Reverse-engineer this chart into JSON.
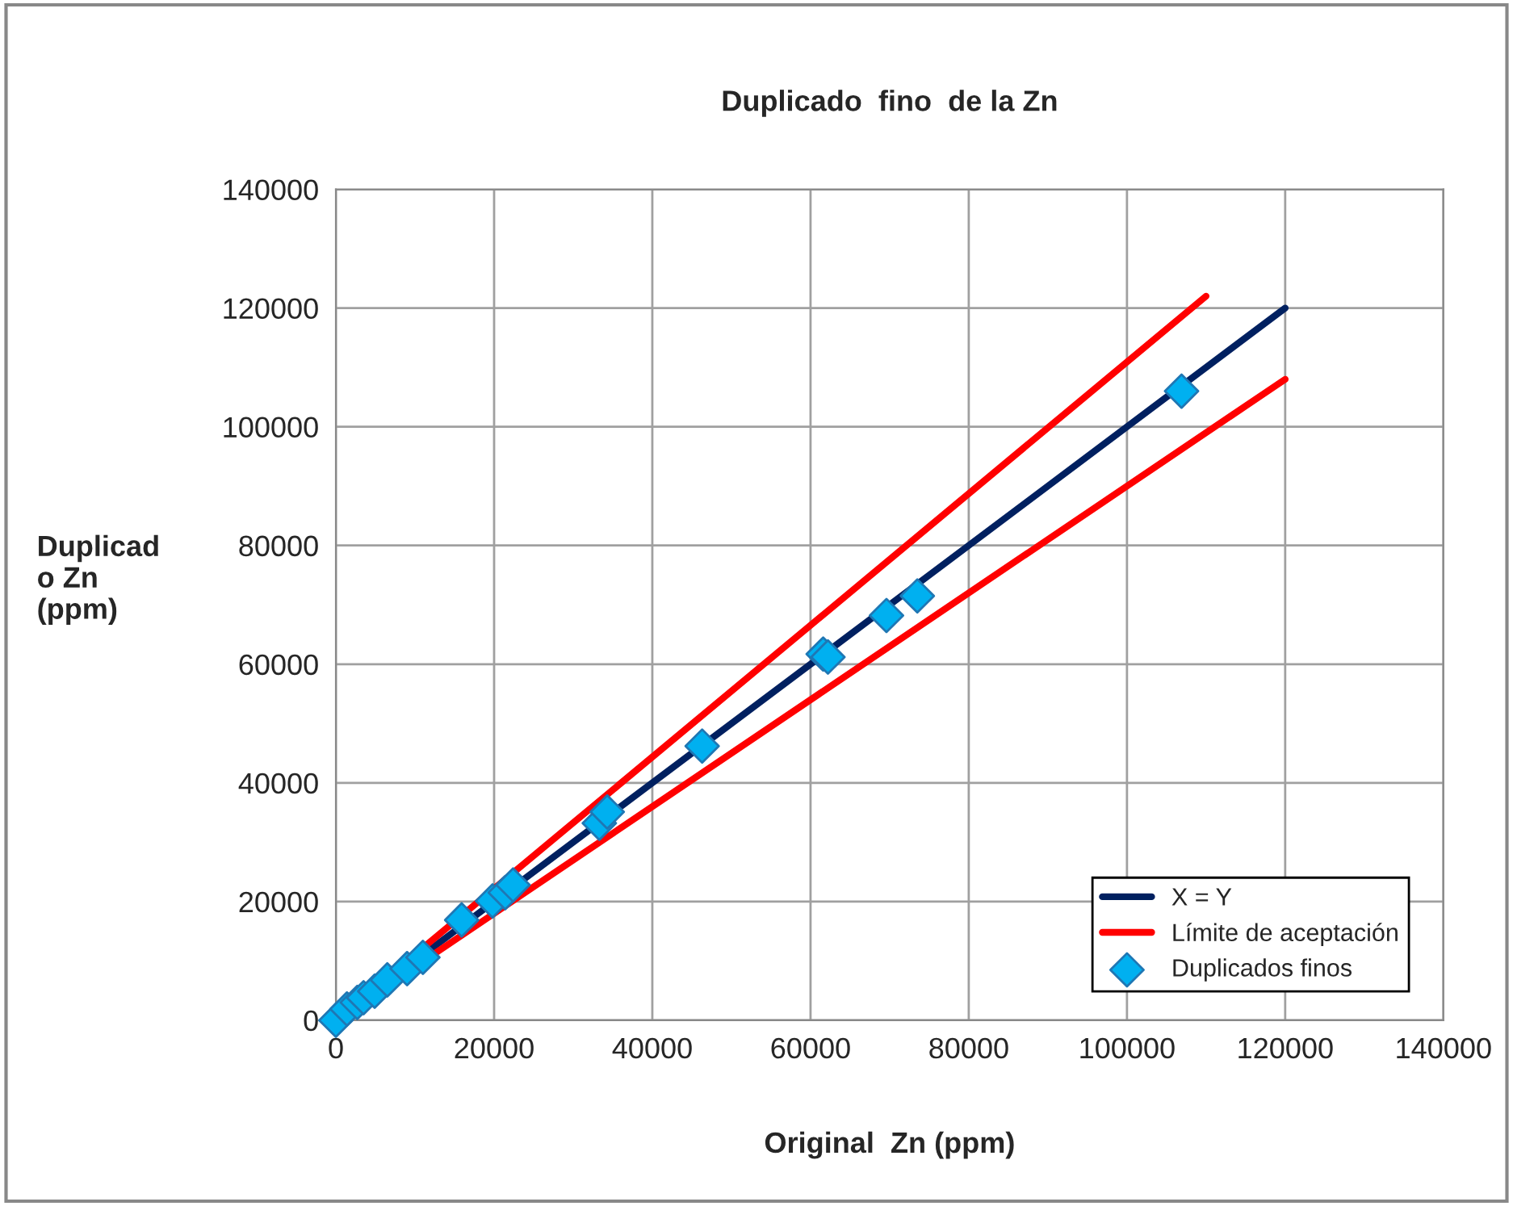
{
  "chart_data": {
    "type": "scatter",
    "title": "Duplicado  fino  de la Zn",
    "xlabel": "Original  Zn (ppm)",
    "ylabel": "Duplicad\no Zn\n(ppm)",
    "xlim": [
      0,
      140000
    ],
    "ylim": [
      0,
      140000
    ],
    "xticks": [
      0,
      20000,
      40000,
      60000,
      80000,
      100000,
      120000,
      140000
    ],
    "yticks": [
      0,
      20000,
      40000,
      60000,
      80000,
      100000,
      120000,
      140000
    ],
    "grid": true,
    "legend": "bottom right",
    "series": [
      {
        "name": "X = Y",
        "type": "line",
        "color": "#002060",
        "marker": "none",
        "x": [
          0,
          120000
        ],
        "values": [
          0,
          120000
        ]
      },
      {
        "name": "Límite de aceptación",
        "type": "line",
        "color": "#ff0000",
        "marker": "none",
        "x": [
          0,
          110000
        ],
        "values": [
          0,
          122000
        ]
      },
      {
        "type": "line",
        "color": "#ff0000",
        "marker": "none",
        "x": [
          0,
          120000
        ],
        "values": [
          0,
          108000
        ]
      },
      {
        "name": "Duplicados finos",
        "color": "#00b0f0",
        "marker": "diamond",
        "x": [
          0,
          1400,
          2700,
          3500,
          4900,
          6500,
          9000,
          11000,
          15900,
          19800,
          21400,
          22400,
          33300,
          34300,
          46300,
          61600,
          62200,
          69600,
          73500,
          106900
        ],
        "values": [
          0,
          1900,
          3000,
          3800,
          4900,
          6800,
          8700,
          10600,
          16900,
          20100,
          21500,
          22800,
          33200,
          35100,
          46200,
          61700,
          61200,
          68200,
          71500,
          106000
        ]
      }
    ]
  }
}
